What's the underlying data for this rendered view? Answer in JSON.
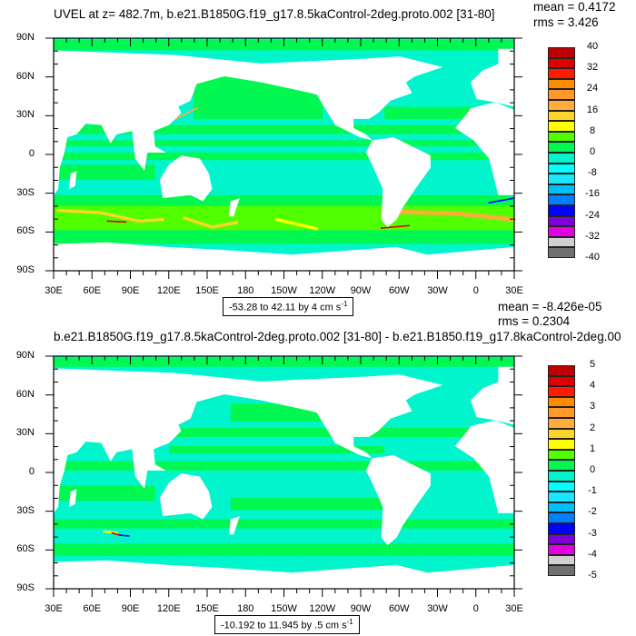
{
  "colors": [
    "#c00000",
    "#e00000",
    "#ff1a00",
    "#ff8c00",
    "#ff9a2a",
    "#ffad3a",
    "#ffd42a",
    "#ffff00",
    "#50ff00",
    "#00f850",
    "#00f5cc",
    "#00ffff",
    "#1ae6ff",
    "#00bfff",
    "#0080ff",
    "#0000ff",
    "#8000d9",
    "#e000e0",
    "#d0d0d0",
    "#707070"
  ],
  "lon_labels": [
    "30E",
    "60E",
    "90E",
    "120E",
    "150E",
    "180",
    "150W",
    "120W",
    "90W",
    "60W",
    "30W",
    "0",
    "30E"
  ],
  "lat_labels": [
    "90N",
    "60N",
    "30N",
    "0",
    "30S",
    "60S",
    "90S"
  ],
  "plots": [
    {
      "title": "UVEL at z= 482.7m, b.e21.B1850G.f19_g17.8.5kaControl-2deg.proto.002 [31-80]",
      "mean": "mean = 0.4172",
      "rms": "rms = 3.426",
      "range_text": "-53.28 to 42.11 by 4 cm s",
      "range_sup": "-1",
      "colorbar_labels": [
        "40",
        "32",
        "24",
        "16",
        "8",
        "0",
        "-8",
        "-16",
        "-24",
        "-32",
        "-40"
      ]
    },
    {
      "title": "b.e21.B1850G.f19_g17.8.5kaControl-2deg.proto.002 [31-80] - b.e21.B1850.f19_g17.8kaControl-2deg.00",
      "mean": "mean = -8.426e-05",
      "rms": "rms = 0.2304",
      "range_text": "-10.192 to 11.945 by .5 cm s",
      "range_sup": "-1",
      "colorbar_labels": [
        "5",
        "4",
        "3",
        "2",
        "1",
        "0",
        "-1",
        "-2",
        "-3",
        "-4",
        "-5"
      ]
    }
  ]
}
